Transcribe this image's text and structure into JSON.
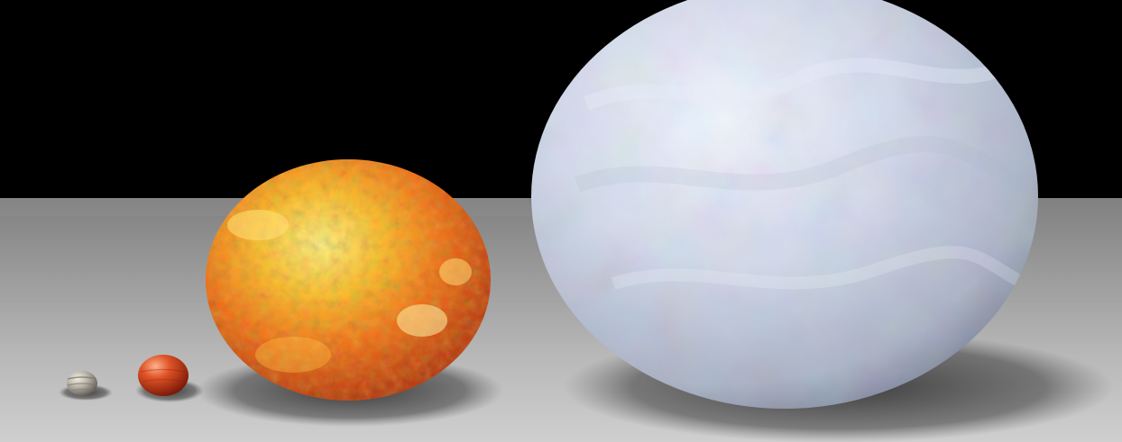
{
  "image": {
    "kind": "size-comparison rendering",
    "colors": {
      "background": "#000000",
      "floor_near": "#bdbdbd",
      "floor_far": "#7f7f7f",
      "edge": "#1c4a5c",
      "shadow": "#2e2e2e"
    },
    "bodies": [
      {
        "name": "smallest-gray-planet",
        "color": "#b9b3a8",
        "band_color": "#7d776c",
        "highlight": "#f1ede4"
      },
      {
        "name": "small-red-planet",
        "color": "#d6441f",
        "band_color": "#8f1d09",
        "highlight": "#ffb08d"
      },
      {
        "name": "orange-star",
        "color": "#f26c17",
        "band_color": "#ffd83d",
        "highlight": "#fff48a"
      },
      {
        "name": "large-blue-white-star",
        "color": "#c8d0e2",
        "band_color": "#aeb6ca",
        "highlight": "#f3f6ff"
      }
    ]
  }
}
